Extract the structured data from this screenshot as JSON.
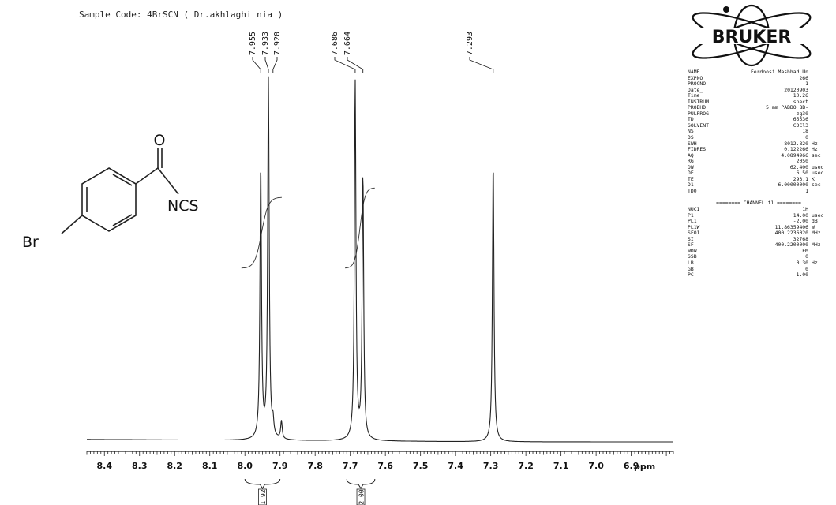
{
  "header": {
    "sample_code": "Sample Code: 4BrSCN ( Dr.akhlaghi nia )"
  },
  "logo": {
    "text": "BRUKER"
  },
  "molecule": {
    "substituent_left": "Br",
    "carbonyl_o": "O",
    "group_right": "NCS"
  },
  "params_top": [
    {
      "key": "NAME",
      "value": "Ferdoosi Mashhad Un",
      "unit": ""
    },
    {
      "key": "EXPNO",
      "value": "266",
      "unit": ""
    },
    {
      "key": "PROCNO",
      "value": "1",
      "unit": ""
    },
    {
      "key": "Date_",
      "value": "20120903",
      "unit": ""
    },
    {
      "key": "Time",
      "value": "10.26",
      "unit": ""
    },
    {
      "key": "INSTRUM",
      "value": "spect",
      "unit": ""
    },
    {
      "key": "PROBHD",
      "value": "5 mm PABBO BB-",
      "unit": ""
    },
    {
      "key": "PULPROG",
      "value": "zg30",
      "unit": ""
    },
    {
      "key": "TD",
      "value": "65536",
      "unit": ""
    },
    {
      "key": "SOLVENT",
      "value": "CDCl3",
      "unit": ""
    },
    {
      "key": "NS",
      "value": "18",
      "unit": ""
    },
    {
      "key": "DS",
      "value": "0",
      "unit": ""
    },
    {
      "key": "SWH",
      "value": "8012.820",
      "unit": "Hz"
    },
    {
      "key": "FIDRES",
      "value": "0.122266",
      "unit": "Hz"
    },
    {
      "key": "AQ",
      "value": "4.0894966",
      "unit": "sec"
    },
    {
      "key": "RG",
      "value": "2050",
      "unit": ""
    },
    {
      "key": "DW",
      "value": "62.400",
      "unit": "usec"
    },
    {
      "key": "DE",
      "value": "6.50",
      "unit": "usec"
    },
    {
      "key": "TE",
      "value": "293.1",
      "unit": "K"
    },
    {
      "key": "D1",
      "value": "6.00000000",
      "unit": "sec"
    },
    {
      "key": "TD0",
      "value": "1",
      "unit": ""
    }
  ],
  "channel_header": "======== CHANNEL f1 ========",
  "params_channel": [
    {
      "key": "NUC1",
      "value": "1H",
      "unit": ""
    },
    {
      "key": "P1",
      "value": "14.00",
      "unit": "usec"
    },
    {
      "key": "PL1",
      "value": "-2.00",
      "unit": "dB"
    },
    {
      "key": "PL1W",
      "value": "11.86359406",
      "unit": "W"
    },
    {
      "key": "SFO1",
      "value": "400.2236020",
      "unit": "MHz"
    },
    {
      "key": "SI",
      "value": "32768",
      "unit": ""
    },
    {
      "key": "SF",
      "value": "400.2200000",
      "unit": "MHz"
    },
    {
      "key": "WDW",
      "value": "EM",
      "unit": ""
    },
    {
      "key": "SSB",
      "value": "0",
      "unit": ""
    },
    {
      "key": "LB",
      "value": "0.30",
      "unit": "Hz"
    },
    {
      "key": "GB",
      "value": "0",
      "unit": ""
    },
    {
      "key": "PC",
      "value": "1.00",
      "unit": ""
    }
  ],
  "chart_data": {
    "type": "line",
    "xlabel": "ppm",
    "x_axis_reversed": true,
    "xlim": [
      8.45,
      6.78
    ],
    "ticks": [
      8.4,
      8.3,
      8.2,
      8.1,
      8.0,
      7.9,
      7.8,
      7.7,
      7.6,
      7.5,
      7.4,
      7.3,
      7.2,
      7.1,
      7.0,
      6.9
    ],
    "tick_labels": [
      "8.4",
      "8.3",
      "8.2",
      "8.1",
      "8.0",
      "7.9",
      "7.8",
      "7.7",
      "7.6",
      "7.5",
      "7.4",
      "7.3",
      "7.2",
      "7.1",
      "7.0",
      "6.9"
    ],
    "peak_labels": [
      {
        "ppm": 7.955,
        "label": "7.955"
      },
      {
        "ppm": 7.933,
        "label": "7.933"
      },
      {
        "ppm": 7.92,
        "label": "7.920"
      },
      {
        "ppm": 7.686,
        "label": "7.686"
      },
      {
        "ppm": 7.664,
        "label": "7.664"
      },
      {
        "ppm": 7.293,
        "label": "7.293"
      }
    ],
    "peaks": [
      {
        "ppm": 7.955,
        "intensity": 0.76
      },
      {
        "ppm": 7.933,
        "intensity": 1.0
      },
      {
        "ppm": 7.92,
        "intensity": 0.04
      },
      {
        "ppm": 7.896,
        "intensity": 0.05
      },
      {
        "ppm": 7.686,
        "intensity": 1.0
      },
      {
        "ppm": 7.664,
        "intensity": 0.74
      },
      {
        "ppm": 7.293,
        "intensity": 0.78
      }
    ],
    "integrals": [
      {
        "from": 8.0,
        "to": 7.9,
        "value": "1.92"
      },
      {
        "from": 7.71,
        "to": 7.63,
        "value": "2.00"
      }
    ]
  }
}
